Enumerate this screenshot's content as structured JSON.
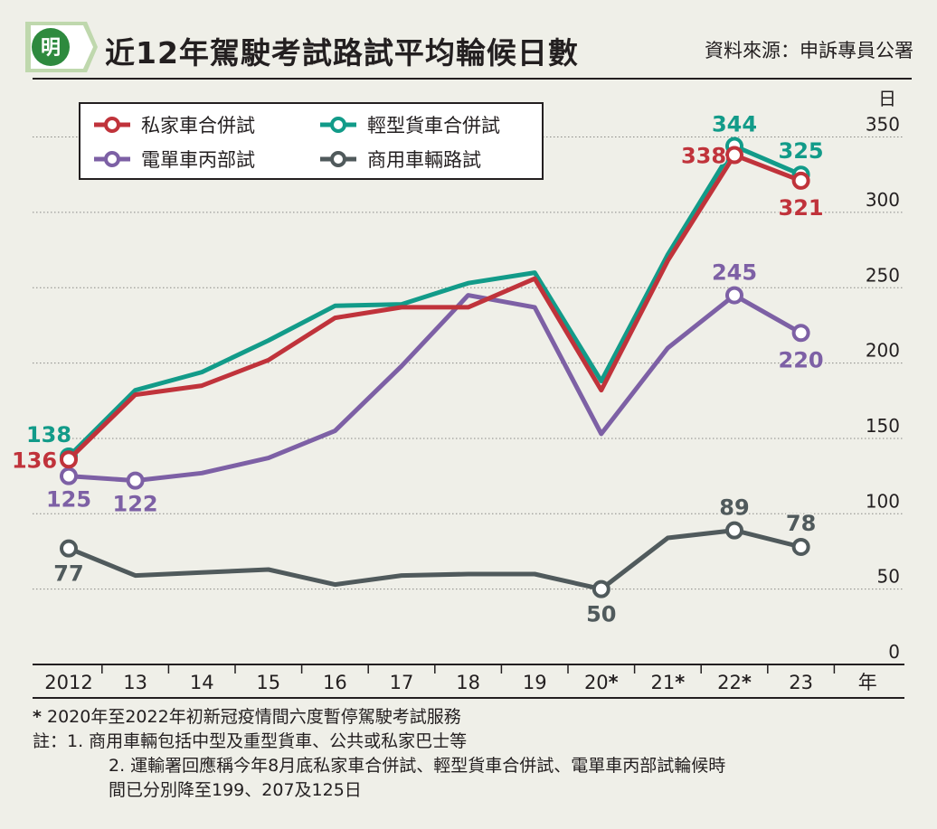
{
  "header": {
    "logo_char": "明",
    "title": "近12年駕駛考試路試平均輪候日數",
    "source": "資料來源：申訴專員公署"
  },
  "chart_data": {
    "type": "line",
    "categories": [
      "2012",
      "13",
      "14",
      "15",
      "16",
      "17",
      "18",
      "19",
      "20*",
      "21*",
      "22*",
      "23"
    ],
    "x_axis_unit": "年",
    "y_axis_unit": "日",
    "ylim": [
      0,
      350
    ],
    "yticks": [
      0,
      50,
      100,
      150,
      200,
      250,
      300,
      350
    ],
    "grid": true,
    "legend_position": "top-left",
    "series": [
      {
        "name": "私家車合併試",
        "color": "#c0333b",
        "values": [
          136,
          179,
          185,
          202,
          230,
          237,
          237,
          256,
          182,
          268,
          338,
          321
        ],
        "labels": [
          {
            "index": 0,
            "text": "136"
          },
          {
            "index": 10,
            "text": "338"
          },
          {
            "index": 11,
            "text": "321"
          }
        ]
      },
      {
        "name": "輕型貨車合併試",
        "color": "#129b89",
        "values": [
          138,
          182,
          194,
          215,
          238,
          239,
          253,
          260,
          188,
          272,
          344,
          325
        ],
        "labels": [
          {
            "index": 0,
            "text": "138"
          },
          {
            "index": 10,
            "text": "344"
          },
          {
            "index": 11,
            "text": "325"
          }
        ]
      },
      {
        "name": "電單車丙部試",
        "color": "#7d60a5",
        "values": [
          125,
          122,
          127,
          137,
          155,
          198,
          245,
          237,
          153,
          210,
          245,
          220
        ],
        "labels": [
          {
            "index": 0,
            "text": "125"
          },
          {
            "index": 1,
            "text": "122"
          },
          {
            "index": 10,
            "text": "245"
          },
          {
            "index": 11,
            "text": "220"
          }
        ]
      },
      {
        "name": "商用車輛路試",
        "color": "#505a5c",
        "values": [
          77,
          59,
          61,
          63,
          53,
          59,
          60,
          60,
          50,
          84,
          89,
          78
        ],
        "labels": [
          {
            "index": 0,
            "text": "77"
          },
          {
            "index": 8,
            "text": "50"
          },
          {
            "index": 10,
            "text": "89"
          },
          {
            "index": 11,
            "text": "78"
          }
        ]
      }
    ]
  },
  "notes": {
    "star": "*",
    "line1": "2020年至2022年初新冠疫情間六度暫停駕駛考試服務",
    "line2": "註：1. 商用車輛包括中型及重型貨車、公共或私家巴士等",
    "line3": "2. 運輸署回應稱今年8月底私家車合併試、輕型貨車合併試、電單車丙部試輪候時",
    "line4": "間已分別降至199、207及125日"
  }
}
